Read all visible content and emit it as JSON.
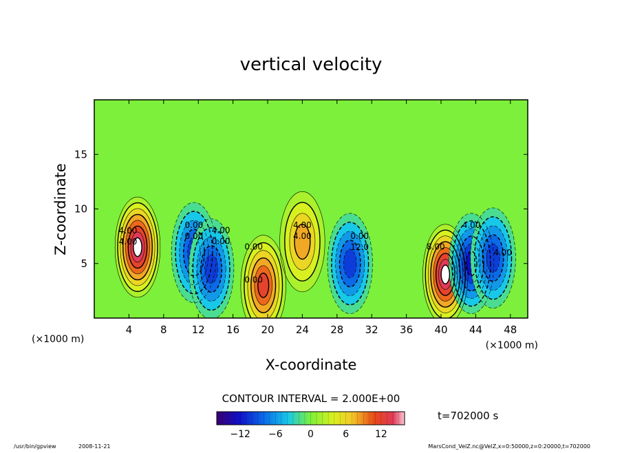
{
  "chart_data": {
    "type": "heatmap",
    "title": "vertical velocity",
    "xlabel": "X-coordinate",
    "ylabel": "Z-coordinate",
    "x_unit_left": "(×1000 m)",
    "x_unit_right": "(×1000 m)",
    "xlim": [
      0,
      50
    ],
    "ylim": [
      0,
      20
    ],
    "x_ticks": [
      4,
      8,
      12,
      16,
      20,
      24,
      28,
      32,
      36,
      40,
      44,
      48
    ],
    "y_ticks": [
      5,
      10,
      15
    ],
    "contour_interval_text": "CONTOUR INTERVAL = 2.000E+00",
    "time_text": "t=702000 s",
    "colorbar": {
      "range": [
        -16,
        16
      ],
      "ticks": [
        -12,
        -6,
        0,
        6,
        12
      ]
    },
    "contour_labels": [
      "4.00",
      "0.00",
      "0.00",
      "0.00",
      "4.00",
      "12.0",
      "8.00",
      "4.00",
      "4.00",
      "4.00",
      "0.00",
      "4.00",
      "0.00",
      "4.00",
      "0.00"
    ],
    "extrema": [
      {
        "x": 5,
        "z": 6.5,
        "value": 16
      },
      {
        "x": 11.5,
        "z": 6,
        "value": -10
      },
      {
        "x": 13.5,
        "z": 4.5,
        "value": -9
      },
      {
        "x": 19.5,
        "z": 3,
        "value": 12
      },
      {
        "x": 24,
        "z": 7,
        "value": 8
      },
      {
        "x": 29.5,
        "z": 5,
        "value": -10
      },
      {
        "x": 40.5,
        "z": 4,
        "value": 16
      },
      {
        "x": 43.5,
        "z": 5,
        "value": -12
      },
      {
        "x": 46,
        "z": 5.5,
        "value": -10
      }
    ]
  },
  "footer": {
    "left_program": "/usr/bin/gpview",
    "left_date": "2008-11-21",
    "right_info": "MarsCond_VelZ.nc@VelZ,x=0:50000,z=0:20000,t=702000"
  },
  "colors": {
    "min": "#3a0070",
    "neg": "#0030c8",
    "zero": "#7cf03a",
    "pos": "#e83a10",
    "max": "#ffffff"
  }
}
